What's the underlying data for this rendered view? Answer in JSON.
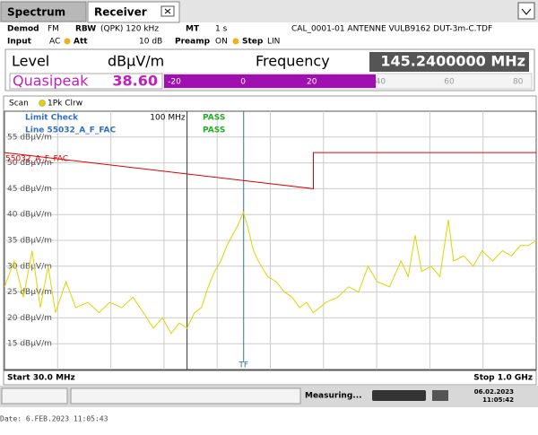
{
  "tabs": [
    "Spectrum",
    "Receiver"
  ],
  "settings": {
    "row1": [
      {
        "label": "Demod",
        "value": "FM"
      },
      {
        "label": "RBW",
        "value": "(QPK) 120 kHz"
      },
      {
        "label": "MT",
        "value": "1 s"
      }
    ],
    "transducer": "CAL_0001-01 ANTENNE VULB9162 DUT-3m-C.TDF",
    "row2": [
      {
        "label": "Input",
        "value": "AC"
      },
      {
        "label": "Att",
        "value": "10 dB"
      },
      {
        "label": "Preamp",
        "value": "ON"
      },
      {
        "label": "Step",
        "value": "LIN"
      }
    ]
  },
  "readout": {
    "level_title": "Level",
    "unit": "dBµV/m",
    "frequency_title": "Frequency",
    "frequency": {
      "value": 145.24,
      "label": "145.2400000 MHz"
    },
    "detector": "Quasipeak",
    "level": {
      "value": 38.6,
      "label": "38.60"
    },
    "bar": {
      "xlim": [
        -23,
        84
      ],
      "xticks": [
        -20,
        0,
        20,
        40,
        60,
        80
      ],
      "color": "#a010b0"
    }
  },
  "scan_title": "Scan",
  "chart_data": {
    "type": "line",
    "xscale": "log",
    "grid": true,
    "xlim": [
      30,
      1000
    ],
    "ylim": [
      10,
      60
    ],
    "yticks": [
      {
        "value": 15,
        "label": "15 dBµV/m"
      },
      {
        "value": 20,
        "label": "20 dBµV/m"
      },
      {
        "value": 25,
        "label": "25 dBµV/m"
      },
      {
        "value": 30,
        "label": "30 dBµV/m"
      },
      {
        "value": 35,
        "label": "35 dBµV/m"
      },
      {
        "value": 40,
        "label": "40 dBµV/m"
      },
      {
        "value": 45,
        "label": "45 dBµV/m"
      },
      {
        "value": 50,
        "label": "50 dBµV/m"
      },
      {
        "value": 55,
        "label": "55 dBµV/m"
      }
    ],
    "start_label": "Start 30.0 MHz",
    "stop_label": "Stop 1.0 GHz",
    "limit_check": "Limit Check",
    "limit_line_label": "Line 55032_A_F_FAC",
    "results": [
      "PASS",
      "PASS"
    ],
    "frequency_line": {
      "value": 100,
      "label": "100 MHz"
    },
    "tf_label": "TF",
    "series": [
      {
        "name": "1Pk Clrw",
        "color": "#e2d200",
        "x": [
          30,
          32,
          34,
          36,
          38,
          40,
          42,
          45,
          48,
          52,
          56,
          60,
          65,
          70,
          75,
          80,
          85,
          90,
          95,
          100,
          105,
          110,
          115,
          120,
          125,
          130,
          135,
          140,
          145,
          150,
          155,
          160,
          170,
          180,
          190,
          200,
          210,
          220,
          230,
          250,
          270,
          290,
          310,
          330,
          350,
          380,
          410,
          430,
          450,
          470,
          500,
          530,
          560,
          580,
          620,
          660,
          700,
          750,
          800,
          850,
          900,
          950,
          1000
        ],
        "values": [
          26,
          31,
          24,
          33,
          22,
          30,
          21,
          27,
          22,
          23,
          21,
          23,
          22,
          24,
          21,
          18,
          20,
          17,
          19,
          18,
          21,
          22,
          26,
          29,
          31,
          34,
          36,
          38,
          40.5,
          37,
          33,
          31,
          28,
          27,
          25,
          24,
          22,
          23,
          21,
          23,
          24,
          26,
          25,
          30,
          27,
          26,
          31,
          28,
          36,
          29,
          30,
          28,
          39,
          31,
          32,
          30,
          33,
          31,
          33,
          32,
          34,
          34,
          35
        ]
      },
      {
        "name": "55032_A_F_FAC",
        "color": "#e00000",
        "x": [
          30,
          230,
          230,
          1000
        ],
        "values": [
          52,
          45,
          52,
          52
        ]
      }
    ]
  },
  "status": {
    "message": "Measuring...",
    "date": "06.02.2023",
    "time": "11:05:42"
  },
  "footer_date": "Date: 6.FEB.2023  11:05:43"
}
